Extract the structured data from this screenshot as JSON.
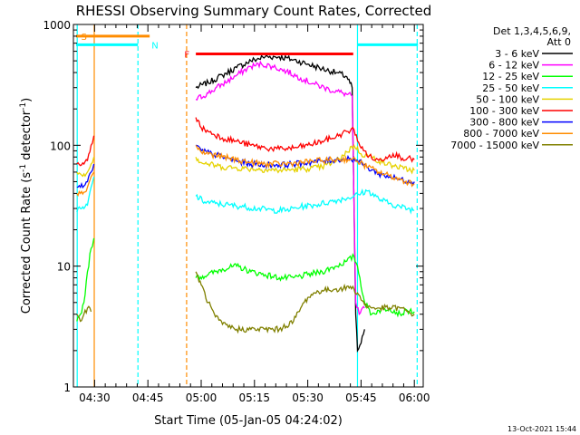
{
  "chart_data": {
    "type": "line",
    "title": "RHESSI Observing Summary Count Rates, Corrected",
    "xlabel": "Start Time (05-Jan-05 04:24:02)",
    "ylabel_parts": [
      "Corrected Count Rate (s",
      "-1",
      " detector",
      "-1",
      ")"
    ],
    "xlim": [
      "04:24:02",
      "06:02:30"
    ],
    "ylim": [
      1,
      1000
    ],
    "yscale": "log",
    "x_ticks": [
      {
        "t": 30,
        "label": "04:30"
      },
      {
        "t": 45,
        "label": "04:45"
      },
      {
        "t": 60,
        "label": "05:00"
      },
      {
        "t": 75,
        "label": "05:15"
      },
      {
        "t": 90,
        "label": "05:30"
      },
      {
        "t": 105,
        "label": "05:45"
      },
      {
        "t": 120,
        "label": "06:00"
      }
    ],
    "x_minor_ticks": [
      33,
      36,
      39,
      42,
      48,
      51,
      54,
      57,
      63,
      66,
      69,
      72,
      78,
      81,
      84,
      87,
      93,
      96,
      99,
      102,
      108,
      111,
      114,
      117
    ],
    "y_ticks": [
      {
        "v": 1,
        "label": "1"
      },
      {
        "v": 10,
        "label": "10"
      },
      {
        "v": 100,
        "label": "100"
      },
      {
        "v": 1000,
        "label": "1000"
      }
    ],
    "legend": {
      "header": [
        "Det 1,3,4,5,6,9,",
        "Att 0"
      ],
      "placement": "right-outside"
    },
    "series": [
      {
        "name": "3 - 6 keV",
        "color": "#000000",
        "points": [
          [
            58.5,
            300
          ],
          [
            62,
            330
          ],
          [
            66,
            380
          ],
          [
            70,
            440
          ],
          [
            74,
            500
          ],
          [
            78,
            540
          ],
          [
            82,
            540
          ],
          [
            86,
            510
          ],
          [
            90,
            470
          ],
          [
            94,
            430
          ],
          [
            98,
            400
          ],
          [
            101,
            370
          ],
          [
            102.5,
            300
          ],
          [
            103.5,
            4
          ],
          [
            104,
            2
          ],
          [
            105,
            2.3
          ],
          [
            106,
            3
          ]
        ]
      },
      {
        "name": "6 - 12 keV",
        "color": "#ff00ff",
        "points": [
          [
            58.5,
            240
          ],
          [
            62,
            270
          ],
          [
            66,
            320
          ],
          [
            70,
            380
          ],
          [
            74,
            450
          ],
          [
            77,
            470
          ],
          [
            80,
            450
          ],
          [
            84,
            410
          ],
          [
            88,
            360
          ],
          [
            92,
            320
          ],
          [
            96,
            290
          ],
          [
            100,
            270
          ],
          [
            102.5,
            255
          ],
          [
            103.5,
            5
          ],
          [
            104.5,
            4
          ],
          [
            106,
            4.5
          ]
        ]
      },
      {
        "name": "12 - 25 keV",
        "color": "#00ff00",
        "points": [
          [
            25,
            3.5
          ],
          [
            26,
            4
          ],
          [
            27,
            5
          ],
          [
            28,
            9
          ],
          [
            29,
            14
          ],
          [
            29.8,
            17
          ],
          [
            58.5,
            8
          ],
          [
            62,
            8.5
          ],
          [
            66,
            9.5
          ],
          [
            70,
            10
          ],
          [
            74,
            9
          ],
          [
            78,
            8.5
          ],
          [
            82,
            8
          ],
          [
            86,
            8
          ],
          [
            90,
            8.5
          ],
          [
            94,
            9
          ],
          [
            98,
            10
          ],
          [
            101,
            11
          ],
          [
            103,
            12
          ],
          [
            104,
            10
          ],
          [
            106,
            5
          ],
          [
            108,
            4
          ],
          [
            110,
            4.3
          ],
          [
            113,
            4.5
          ],
          [
            116,
            4
          ],
          [
            118,
            4.3
          ],
          [
            120,
            4.2
          ]
        ]
      },
      {
        "name": "25 - 50 keV",
        "color": "#00ffff",
        "points": [
          [
            25,
            28
          ],
          [
            26,
            30
          ],
          [
            27,
            30
          ],
          [
            28,
            32
          ],
          [
            29,
            45
          ],
          [
            29.8,
            55
          ],
          [
            58.5,
            38
          ],
          [
            61,
            34
          ],
          [
            64,
            33
          ],
          [
            68,
            32
          ],
          [
            72,
            31
          ],
          [
            76,
            30
          ],
          [
            80,
            29
          ],
          [
            84,
            29
          ],
          [
            88,
            31
          ],
          [
            92,
            32
          ],
          [
            96,
            34
          ],
          [
            100,
            36
          ],
          [
            103,
            38
          ],
          [
            105,
            40
          ],
          [
            107,
            42
          ],
          [
            110,
            36
          ],
          [
            113,
            33
          ],
          [
            116,
            31
          ],
          [
            120,
            29
          ]
        ]
      },
      {
        "name": "50 - 100 keV",
        "color": "#e6d200",
        "points": [
          [
            25,
            60
          ],
          [
            26,
            58
          ],
          [
            27,
            58
          ],
          [
            28,
            60
          ],
          [
            29,
            70
          ],
          [
            29.8,
            80
          ],
          [
            58.5,
            80
          ],
          [
            60,
            72
          ],
          [
            62,
            70
          ],
          [
            66,
            66
          ],
          [
            70,
            65
          ],
          [
            74,
            64
          ],
          [
            78,
            63
          ],
          [
            82,
            62
          ],
          [
            86,
            63
          ],
          [
            90,
            64
          ],
          [
            94,
            66
          ],
          [
            98,
            74
          ],
          [
            101,
            88
          ],
          [
            103,
            100
          ],
          [
            105,
            85
          ],
          [
            108,
            80
          ],
          [
            111,
            72
          ],
          [
            114,
            68
          ],
          [
            117,
            64
          ],
          [
            120,
            62
          ]
        ]
      },
      {
        "name": "100 - 300 keV",
        "color": "#ff0000",
        "points": [
          [
            25,
            70
          ],
          [
            26,
            68
          ],
          [
            27,
            70
          ],
          [
            28,
            75
          ],
          [
            29,
            100
          ],
          [
            29.8,
            120
          ],
          [
            58.5,
            170
          ],
          [
            60,
            140
          ],
          [
            62,
            130
          ],
          [
            66,
            115
          ],
          [
            70,
            108
          ],
          [
            74,
            100
          ],
          [
            78,
            95
          ],
          [
            82,
            93
          ],
          [
            86,
            95
          ],
          [
            90,
            100
          ],
          [
            94,
            108
          ],
          [
            98,
            118
          ],
          [
            101,
            130
          ],
          [
            103,
            135
          ],
          [
            105,
            95
          ],
          [
            108,
            78
          ],
          [
            110,
            75
          ],
          [
            112,
            80
          ],
          [
            114,
            85
          ],
          [
            116,
            80
          ],
          [
            118,
            78
          ],
          [
            120,
            76
          ]
        ]
      },
      {
        "name": "300 - 800 keV",
        "color": "#0000ff",
        "points": [
          [
            25,
            45
          ],
          [
            26,
            45
          ],
          [
            27,
            46
          ],
          [
            28,
            50
          ],
          [
            29,
            60
          ],
          [
            29.8,
            70
          ],
          [
            58.5,
            100
          ],
          [
            60,
            90
          ],
          [
            63,
            85
          ],
          [
            66,
            80
          ],
          [
            70,
            74
          ],
          [
            74,
            70
          ],
          [
            78,
            69
          ],
          [
            82,
            69
          ],
          [
            86,
            70
          ],
          [
            90,
            72
          ],
          [
            94,
            74
          ],
          [
            98,
            76
          ],
          [
            102,
            78
          ],
          [
            104,
            75
          ],
          [
            107,
            65
          ],
          [
            110,
            58
          ],
          [
            113,
            55
          ],
          [
            116,
            52
          ],
          [
            120,
            50
          ]
        ]
      },
      {
        "name": "800 - 7000 keV",
        "color": "#ff8c00",
        "points": [
          [
            25,
            40
          ],
          [
            26,
            40
          ],
          [
            27,
            41
          ],
          [
            28,
            45
          ],
          [
            29,
            55
          ],
          [
            29.8,
            60
          ],
          [
            58.5,
            100
          ],
          [
            60,
            88
          ],
          [
            63,
            84
          ],
          [
            66,
            80
          ],
          [
            70,
            76
          ],
          [
            74,
            72
          ],
          [
            78,
            70
          ],
          [
            82,
            70
          ],
          [
            86,
            71
          ],
          [
            90,
            73
          ],
          [
            94,
            75
          ],
          [
            98,
            76
          ],
          [
            102,
            77
          ],
          [
            104,
            74
          ],
          [
            107,
            66
          ],
          [
            110,
            60
          ],
          [
            113,
            56
          ],
          [
            116,
            52
          ],
          [
            120,
            48
          ]
        ]
      },
      {
        "name": "7000 - 15000 keV",
        "color": "#808000",
        "points": [
          [
            25,
            4
          ],
          [
            26,
            3.5
          ],
          [
            27,
            4
          ],
          [
            28,
            4.5
          ],
          [
            29,
            4.2
          ],
          [
            58.5,
            9
          ],
          [
            60,
            7
          ],
          [
            62,
            5
          ],
          [
            64,
            3.8
          ],
          [
            66,
            3.3
          ],
          [
            70,
            3
          ],
          [
            74,
            3
          ],
          [
            78,
            3
          ],
          [
            82,
            3
          ],
          [
            86,
            3.5
          ],
          [
            88,
            4.5
          ],
          [
            90,
            5.5
          ],
          [
            92,
            6
          ],
          [
            94,
            6.3
          ],
          [
            96,
            6.3
          ],
          [
            98,
            6.5
          ],
          [
            100,
            6.5
          ],
          [
            102,
            6.8
          ],
          [
            104,
            6
          ],
          [
            106,
            4.8
          ],
          [
            108,
            4.5
          ],
          [
            110,
            4.5
          ],
          [
            113,
            4.5
          ],
          [
            116,
            4.5
          ],
          [
            118,
            4.2
          ],
          [
            120,
            4
          ]
        ]
      }
    ],
    "top_flags": [
      {
        "letter": "S",
        "color": "#ff8c00",
        "from": 24.8,
        "to": 45.5,
        "y": 800
      },
      {
        "letter": "N",
        "color": "#00ffff",
        "from": 24.8,
        "to": 42.2,
        "y": 680
      },
      {
        "letter": "N",
        "color": "#00ffff",
        "from": 104,
        "to": 121,
        "y": 680
      },
      {
        "letter": "F",
        "color": "#ff0000",
        "from": 58.5,
        "to": 102.8,
        "y": 570
      }
    ],
    "flag_labels": [
      {
        "letter": "S",
        "t": 27,
        "v": 800,
        "color": "#ff8c00"
      },
      {
        "letter": "N",
        "t": 47,
        "v": 680,
        "color": "#00ffff"
      },
      {
        "letter": "F",
        "t": 56,
        "v": 570,
        "color": "#ff0000"
      }
    ],
    "vertical_markers": [
      {
        "t": 25.1,
        "color": "#00ffff",
        "style": "solid"
      },
      {
        "t": 29.9,
        "color": "#ff8c00",
        "style": "solid"
      },
      {
        "t": 42.2,
        "color": "#00ffff",
        "style": "dashed"
      },
      {
        "t": 55.9,
        "color": "#ff8c00",
        "style": "dashed"
      },
      {
        "t": 104,
        "color": "#00ffff",
        "style": "solid"
      },
      {
        "t": 120.8,
        "color": "#00ffff",
        "style": "dashed"
      }
    ],
    "grid": false
  },
  "footer": {
    "timestamp": "13-Oct-2021 15:44"
  }
}
